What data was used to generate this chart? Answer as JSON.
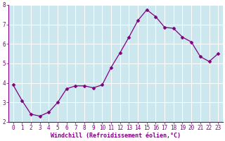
{
  "x": [
    0,
    1,
    2,
    3,
    4,
    5,
    6,
    7,
    8,
    9,
    10,
    11,
    12,
    13,
    14,
    15,
    16,
    17,
    18,
    19,
    20,
    21,
    22,
    23
  ],
  "y": [
    3.9,
    3.1,
    2.4,
    2.3,
    2.5,
    3.0,
    3.7,
    3.85,
    3.85,
    3.75,
    3.9,
    4.8,
    5.55,
    6.35,
    7.2,
    7.75,
    7.4,
    6.85,
    6.8,
    6.35,
    6.1,
    5.35,
    5.1,
    5.5
  ],
  "line_color": "#800080",
  "marker": "D",
  "marker_size": 2.5,
  "bg_color": "#cce8ee",
  "grid_color": "#ffffff",
  "xlabel": "Windchill (Refroidissement éolien,°C)",
  "xlabel_color": "#800080",
  "tick_color": "#800080",
  "spine_color": "#800080",
  "fig_bg_color": "#ffffff",
  "ylim": [
    2,
    8
  ],
  "xlim": [
    -0.5,
    23.5
  ],
  "yticks": [
    2,
    3,
    4,
    5,
    6,
    7,
    8
  ],
  "xticks": [
    0,
    1,
    2,
    3,
    4,
    5,
    6,
    7,
    8,
    9,
    10,
    11,
    12,
    13,
    14,
    15,
    16,
    17,
    18,
    19,
    20,
    21,
    22,
    23
  ],
  "tick_fontsize": 5.5,
  "xlabel_fontsize": 6.0
}
